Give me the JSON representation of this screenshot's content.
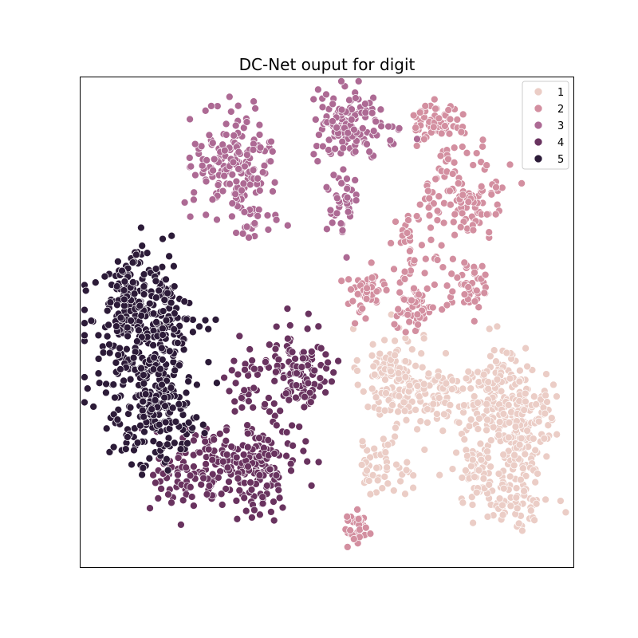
{
  "chart_data": {
    "type": "scatter",
    "title": "DC-Net ouput for digit",
    "xlabel": "",
    "ylabel": "",
    "xlim": [
      0,
      100
    ],
    "ylim": [
      0,
      100
    ],
    "ticks_visible": false,
    "grid": false,
    "legend_position": "top-right",
    "series": [
      {
        "name": "1",
        "color": "#ebcdc6",
        "clusters": [
          {
            "x": 63,
            "y": 39,
            "sx": 3.2,
            "sy": 5.0,
            "n": 120
          },
          {
            "x": 74,
            "y": 36,
            "sx": 5.0,
            "sy": 3.0,
            "n": 90
          },
          {
            "x": 85,
            "y": 33,
            "sx": 4.5,
            "sy": 6.0,
            "n": 160
          },
          {
            "x": 89,
            "y": 27,
            "sx": 2.5,
            "sy": 6.0,
            "n": 90
          },
          {
            "x": 88,
            "y": 14,
            "sx": 3.5,
            "sy": 3.0,
            "n": 70
          },
          {
            "x": 80,
            "y": 19,
            "sx": 2.5,
            "sy": 3.0,
            "n": 45
          },
          {
            "x": 61,
            "y": 21,
            "sx": 3.0,
            "sy": 3.0,
            "n": 50
          },
          {
            "x": 93,
            "y": 31,
            "sx": 2.0,
            "sy": 2.5,
            "n": 35
          }
        ]
      },
      {
        "name": "2",
        "color": "#d38fa0",
        "clusters": [
          {
            "x": 72,
            "y": 91,
            "sx": 2.5,
            "sy": 2.0,
            "n": 60
          },
          {
            "x": 78,
            "y": 77,
            "sx": 4.0,
            "sy": 5.0,
            "n": 110
          },
          {
            "x": 58,
            "y": 56,
            "sx": 2.5,
            "sy": 2.2,
            "n": 50
          },
          {
            "x": 68,
            "y": 53,
            "sx": 2.0,
            "sy": 2.5,
            "n": 55
          },
          {
            "x": 79,
            "y": 57,
            "sx": 2.0,
            "sy": 2.5,
            "n": 45
          },
          {
            "x": 68,
            "y": 65,
            "sx": 3.5,
            "sy": 5.0,
            "n": 50
          },
          {
            "x": 56,
            "y": 8,
            "sx": 1.3,
            "sy": 2.0,
            "n": 35
          }
        ]
      },
      {
        "name": "3",
        "color": "#ad6a94",
        "clusters": [
          {
            "x": 31,
            "y": 83,
            "sx": 4.0,
            "sy": 5.0,
            "n": 170
          },
          {
            "x": 54,
            "y": 90,
            "sx": 3.5,
            "sy": 3.5,
            "n": 130
          },
          {
            "x": 53,
            "y": 74,
            "sx": 1.6,
            "sy": 3.5,
            "n": 40
          },
          {
            "x": 35,
            "y": 72,
            "sx": 3.5,
            "sy": 3.0,
            "n": 25
          },
          {
            "x": 62,
            "y": 88,
            "sx": 2.5,
            "sy": 1.5,
            "n": 12
          }
        ]
      },
      {
        "name": "4",
        "color": "#69335f",
        "clusters": [
          {
            "x": 36,
            "y": 20,
            "sx": 4.0,
            "sy": 4.0,
            "n": 150
          },
          {
            "x": 26,
            "y": 22,
            "sx": 5.0,
            "sy": 4.0,
            "n": 80
          },
          {
            "x": 44,
            "y": 40,
            "sx": 3.5,
            "sy": 5.0,
            "n": 110
          },
          {
            "x": 34,
            "y": 37,
            "sx": 3.5,
            "sy": 5.0,
            "n": 40
          },
          {
            "x": 20,
            "y": 17,
            "sx": 3.0,
            "sy": 3.0,
            "n": 40
          }
        ]
      },
      {
        "name": "5",
        "color": "#2c1b38",
        "clusters": [
          {
            "x": 13,
            "y": 47,
            "sx": 5.5,
            "sy": 8.0,
            "n": 320
          },
          {
            "x": 16,
            "y": 30,
            "sx": 4.0,
            "sy": 5.0,
            "n": 150
          },
          {
            "x": 10,
            "y": 56,
            "sx": 3.5,
            "sy": 4.0,
            "n": 70
          }
        ]
      }
    ]
  },
  "legend": {
    "entries": [
      "1",
      "2",
      "3",
      "4",
      "5"
    ]
  }
}
